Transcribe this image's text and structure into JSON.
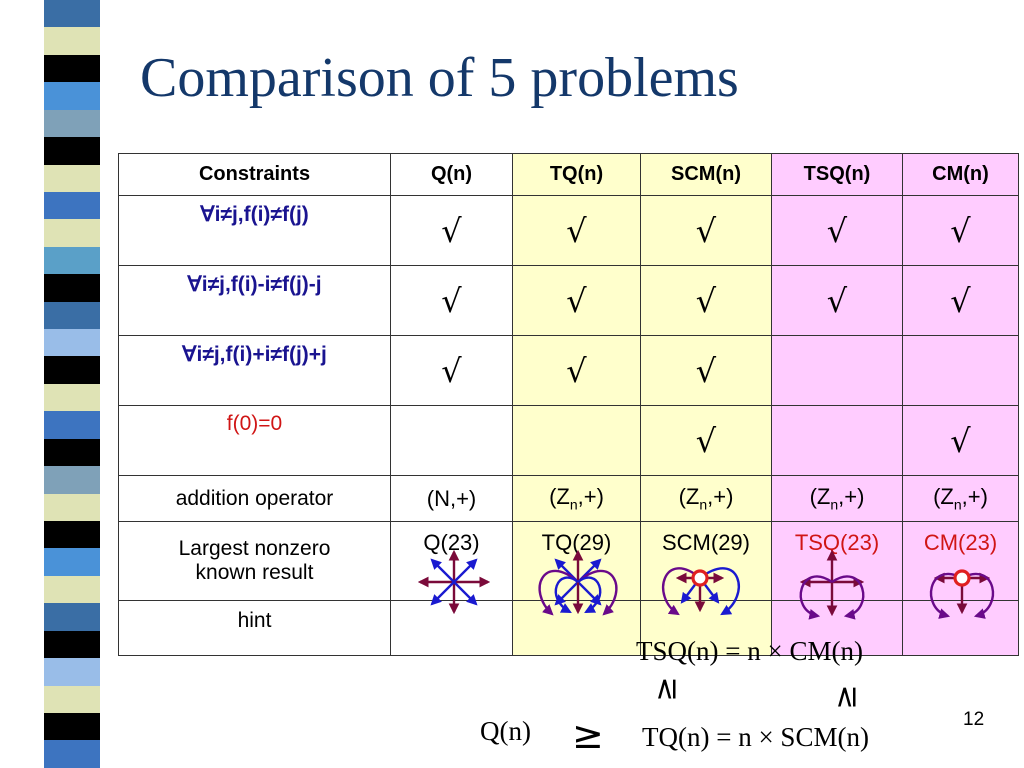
{
  "title": "Comparison of 5 problems",
  "table": {
    "headers": [
      "Constraints",
      "Q(n)",
      "TQ(n)",
      "SCM(n)",
      "TSQ(n)",
      "CM(n)"
    ],
    "check_rows": [
      {
        "label": "∀i≠j,f(i)≠f(j)",
        "marks": [
          "√",
          "√",
          "√",
          "√",
          "√"
        ]
      },
      {
        "label": "∀i≠j,f(i)-i≠f(j)-j",
        "marks": [
          "√",
          "√",
          "√",
          "√",
          "√"
        ]
      },
      {
        "label": "∀i≠j,f(i)+i≠f(j)+j",
        "marks": [
          "√",
          "√",
          "√",
          "",
          ""
        ]
      },
      {
        "label": "f(0)=0",
        "marks": [
          "",
          "",
          "√",
          "",
          "√"
        ]
      }
    ],
    "addition_row": {
      "label": "addition operator",
      "q": "(N,+)",
      "zn_base": "(Z",
      "zn_sub": "n",
      "zn_tail": ",+)"
    },
    "largest_row": {
      "label_line1": "Largest nonzero",
      "label_line2": "known result",
      "values": [
        "Q(23)",
        "TQ(29)",
        "SCM(29)",
        "TSQ(23)",
        "CM(23)"
      ]
    },
    "hint_row": {
      "label": "hint",
      "icons": [
        "star-arrows-icon",
        "star-loops-icon",
        "star-loops-dot-icon",
        "cross-loops-icon",
        "cross-loops-dot-icon"
      ]
    }
  },
  "relations": {
    "eq_top": "TSQ(n) = n × CM(n)",
    "eq_bottom": "TQ(n) = n × SCM(n)",
    "q_label": "Q(n)",
    "geq_left": "≥",
    "geq_mid": "≥",
    "geq_right": "≥"
  },
  "page_number": "12",
  "colors": {
    "title": "#14386a",
    "yellow_cols": "#ffffcc",
    "pink_cols": "#ffccff",
    "label_blue": "#1a1490",
    "label_red": "#d01515",
    "arrow_blue": "#1a1ad0",
    "arrow_purple": "#6a0a8a",
    "arrow_maroon": "#7a0a3a"
  }
}
